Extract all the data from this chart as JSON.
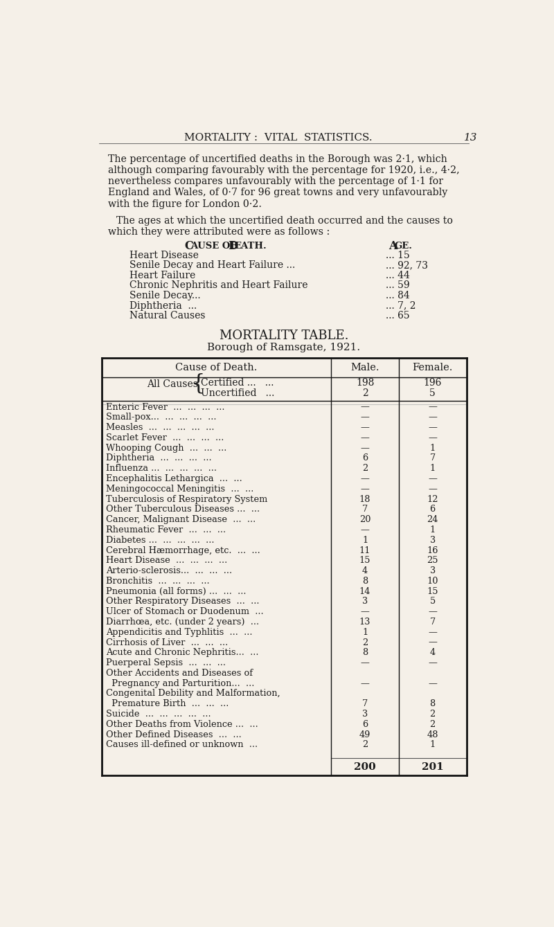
{
  "bg_color": "#f5f0e8",
  "page_header": "MORTALITY :  VITAL  STATISTICS.",
  "page_number": "13",
  "intro_text": [
    "The percentage of uncertified deaths in the Borough was 2·1, which",
    "although comparing favourably with the percentage for 1920, i.e., 4·2,",
    "nevertheless compares unfavourably with the percentage of 1·1 for",
    "England and Wales, of 0·7 for 96 great towns and very unfavourably",
    "with the figure for London 0·2."
  ],
  "intro_text2": [
    "The ages at which the uncertified death occurred and the causes to",
    "which they were attributed were as follows :"
  ],
  "cause_header": "Cause of Death.",
  "age_header": "Age.",
  "causes_ages": [
    [
      "Heart Disease",
      "... 15"
    ],
    [
      "Senile Decay and Heart Failure ...",
      "... 92, 73"
    ],
    [
      "Heart Failure",
      "... 44"
    ],
    [
      "Chronic Nephritis and Heart Failure",
      "... 59"
    ],
    [
      "Senile Decay...",
      "... 84"
    ],
    [
      "Diphtheria  ...",
      "... 7, 2"
    ],
    [
      "Natural Causes",
      "... 65"
    ]
  ],
  "table_title1": "MORTALITY TABLE.",
  "table_title2": "Borough of Ramsgate, 1921.",
  "col_headers": [
    "Cause of Death.",
    "Male.",
    "Female."
  ],
  "table_rows": [
    [
      "Enteric Fever  ...  ...  ...  ...",
      "—",
      "—"
    ],
    [
      "Small-pox...  ...  ...  ...  ...",
      "—",
      "—"
    ],
    [
      "Measles  ...  ...  ...  ...  ...",
      "—",
      "—"
    ],
    [
      "Scarlet Fever  ...  ...  ...  ...",
      "—",
      "—"
    ],
    [
      "Whooping Cough  ...  ...  ...",
      "—",
      "1"
    ],
    [
      "Diphtheria  ...  ...  ...  ...",
      "6",
      "7"
    ],
    [
      "Influenza ...  ...  ...  ...  ...",
      "2",
      "1"
    ],
    [
      "Encephalitis Lethargica  ...  ...",
      "—",
      "—"
    ],
    [
      "Meningococcal Meningitis  ...  ...",
      "—",
      "—"
    ],
    [
      "Tuberculosis of Respiratory System",
      "18",
      "12"
    ],
    [
      "Other Tuberculous Diseases ...  ...",
      "7",
      "6"
    ],
    [
      "Cancer, Malignant Disease  ...  ...",
      "20",
      "24"
    ],
    [
      "Rheumatic Fever  ...  ...  ...",
      "—",
      "1"
    ],
    [
      "Diabetes ...  ...  ...  ...  ...",
      "1",
      "3"
    ],
    [
      "Cerebral Hæmorrhage, etc.  ...  ...",
      "11",
      "16"
    ],
    [
      "Heart Disease  ...  ...  ...  ...",
      "15",
      "25"
    ],
    [
      "Arterio-sclerosis...  ...  ...  ...",
      "4",
      "3"
    ],
    [
      "Bronchitis  ...  ...  ...  ...",
      "8",
      "10"
    ],
    [
      "Pneumonia (all forms) ...  ...  ...",
      "14",
      "15"
    ],
    [
      "Other Respiratory Diseases  ...  ...",
      "3",
      "5"
    ],
    [
      "Ulcer of Stomach or Duodenum  ...",
      "—",
      "—"
    ],
    [
      "Diarrhœa, etc. (under 2 years)  ...",
      "13",
      "7"
    ],
    [
      "Appendicitis and Typhlitis  ...  ...",
      "1",
      "—"
    ],
    [
      "Cirrhosis of Liver  ...  ...  ...",
      "2",
      "—"
    ],
    [
      "Acute and Chronic Nephritis...  ...",
      "8",
      "4"
    ],
    [
      "Puerperal Sepsis  ...  ...  ...",
      "—",
      "—"
    ],
    [
      "Other Accidents and Diseases of",
      "",
      ""
    ],
    [
      "  Pregnancy and Parturition...  ...",
      "—",
      "—"
    ],
    [
      "Congenital Debility and Malformation,",
      "",
      ""
    ],
    [
      "  Premature Birth  ...  ...  ...",
      "7",
      "8"
    ],
    [
      "Suicide  ...  ...  ...  ...  ...",
      "3",
      "2"
    ],
    [
      "Other Deaths from Violence ...  ...",
      "6",
      "2"
    ],
    [
      "Other Defined Diseases  ...  ...",
      "49",
      "48"
    ],
    [
      "Causes ill-defined or unknown  ...",
      "2",
      "1"
    ]
  ],
  "totals": [
    "200",
    "201"
  ]
}
